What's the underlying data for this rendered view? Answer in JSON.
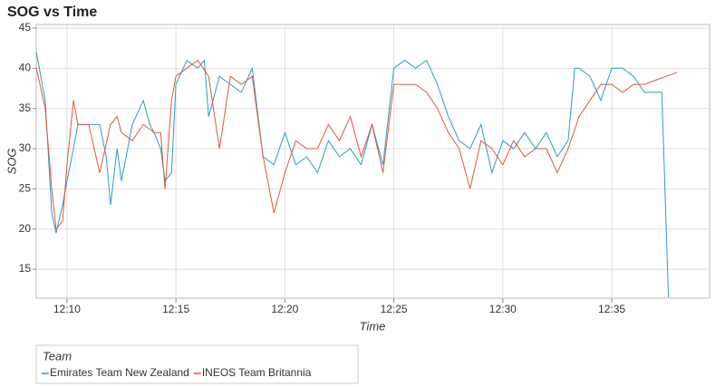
{
  "chart_data": {
    "type": "line",
    "title": "SOG vs Time",
    "x_label": "Time",
    "y_label": "SOG",
    "xlim": [
      8.59,
      39.49
    ],
    "ylim": [
      11.4,
      45.45
    ],
    "xticks": [
      {
        "value": 10,
        "label": "12:10"
      },
      {
        "value": 15,
        "label": "12:15"
      },
      {
        "value": 20,
        "label": "12:20"
      },
      {
        "value": 25,
        "label": "12:25"
      },
      {
        "value": 30,
        "label": "12:30"
      },
      {
        "value": 35,
        "label": "12:35"
      }
    ],
    "yticks": [
      15,
      20,
      25,
      30,
      35,
      40,
      45
    ],
    "grid": true,
    "legend_title": "Team",
    "legend_position": "bottom",
    "series": [
      {
        "name": "Emirates Team New Zealand",
        "color": "#2b9cc6",
        "x": [
          8.6,
          9,
          9.3,
          9.5,
          9.8,
          10,
          10.3,
          10.5,
          11,
          11.5,
          11.8,
          12,
          12.3,
          12.5,
          13,
          13.5,
          13.8,
          14,
          14.3,
          14.5,
          14.8,
          15,
          15.5,
          16,
          16.3,
          16.5,
          17,
          17.5,
          18,
          18.5,
          19,
          19.5,
          20,
          20.5,
          21,
          21.5,
          22,
          22.5,
          23,
          23.5,
          24,
          24.5,
          25,
          25.5,
          26,
          26.5,
          27,
          27.5,
          28,
          28.5,
          29,
          29.5,
          30,
          30.5,
          31,
          31.5,
          32,
          32.5,
          33,
          33.3,
          33.5,
          34,
          34.5,
          35,
          35.5,
          36,
          36.5,
          37,
          37.3,
          37.6
        ],
        "values": [
          42,
          36,
          22,
          19.5,
          23,
          26,
          30,
          33,
          33,
          33,
          29,
          23,
          30,
          26,
          33,
          36,
          33,
          32,
          30,
          26,
          27,
          38,
          41,
          40,
          41,
          34,
          39,
          38,
          37,
          40,
          29,
          28,
          32,
          28,
          29,
          27,
          31,
          29,
          30,
          28,
          33,
          28,
          40,
          41,
          40,
          41,
          38,
          34,
          31,
          30,
          33,
          27,
          31,
          30,
          32,
          30,
          32,
          29,
          31,
          40,
          40,
          39,
          36,
          40,
          40,
          39,
          37,
          37,
          37,
          11.5
        ]
      },
      {
        "name": "INEOS Team Britannia",
        "color": "#e0573d",
        "x": [
          8.6,
          9,
          9.3,
          9.5,
          9.8,
          10,
          10.3,
          10.5,
          11,
          11.5,
          12,
          12.3,
          12.5,
          13,
          13.5,
          14,
          14.3,
          14.5,
          14.8,
          15,
          15.5,
          16,
          16.5,
          17,
          17.5,
          18,
          18.5,
          19,
          19.5,
          20,
          20.5,
          21,
          21.5,
          22,
          22.5,
          23,
          23.5,
          24,
          24.5,
          25,
          25.5,
          26,
          26.5,
          27,
          27.5,
          28,
          28.5,
          29,
          29.5,
          30,
          30.5,
          31,
          31.5,
          32,
          32.5,
          33,
          33.5,
          34,
          34.5,
          35,
          35.5,
          36,
          36.5,
          37,
          37.5,
          38
        ],
        "values": [
          40,
          35,
          25,
          20,
          21,
          28,
          36,
          33,
          33,
          27,
          33,
          34,
          32,
          31,
          33,
          32,
          32,
          25,
          36,
          39,
          40,
          41,
          39,
          30,
          39,
          38,
          39,
          29,
          22,
          27,
          31,
          30,
          30,
          33,
          31,
          34,
          29,
          33,
          27,
          38,
          38,
          38,
          37,
          35,
          32,
          30,
          25,
          31,
          30,
          28,
          31,
          29,
          30,
          30,
          27,
          30,
          34,
          36,
          38,
          38,
          37,
          38,
          38,
          38.5,
          39,
          39.5
        ]
      }
    ]
  }
}
